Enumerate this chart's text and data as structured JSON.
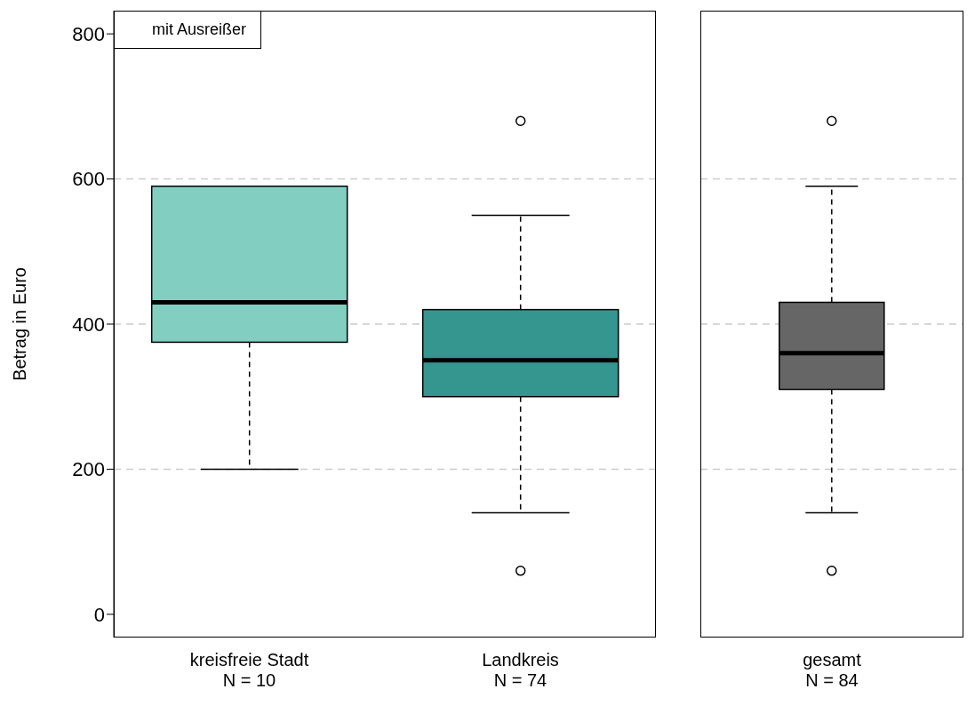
{
  "chart_data": [
    {
      "type": "box",
      "ylabel": "Betrag in Euro",
      "categories": [
        "kreisfreie Stadt\nN = 10",
        "Landkreis\nN = 74"
      ],
      "colors": [
        "#82cfc1",
        "#35968f"
      ],
      "boxes": [
        {
          "low": 200,
          "q1": 375,
          "median": 430,
          "q3": 590,
          "high": 590
        },
        {
          "low": 140,
          "q1": 300,
          "median": 350,
          "q3": 420,
          "high": 550,
          "outliers": [
            60,
            680
          ]
        }
      ],
      "ylim": [
        -32,
        832
      ],
      "yticks": [
        0,
        200,
        400,
        600,
        800
      ],
      "grid": "y",
      "annotations": [
        "mit Ausreißer"
      ]
    },
    {
      "type": "box",
      "categories": [
        "gesamt\nN = 84"
      ],
      "colors": [
        "#666666"
      ],
      "boxes": [
        {
          "low": 140,
          "q1": 310,
          "median": 360,
          "q3": 430,
          "high": 590,
          "outliers": [
            60,
            680
          ]
        }
      ],
      "ylim": [
        -32,
        832
      ],
      "yticks": [
        0,
        200,
        400,
        600,
        800
      ],
      "grid": "y",
      "tick_labels": "x"
    }
  ]
}
